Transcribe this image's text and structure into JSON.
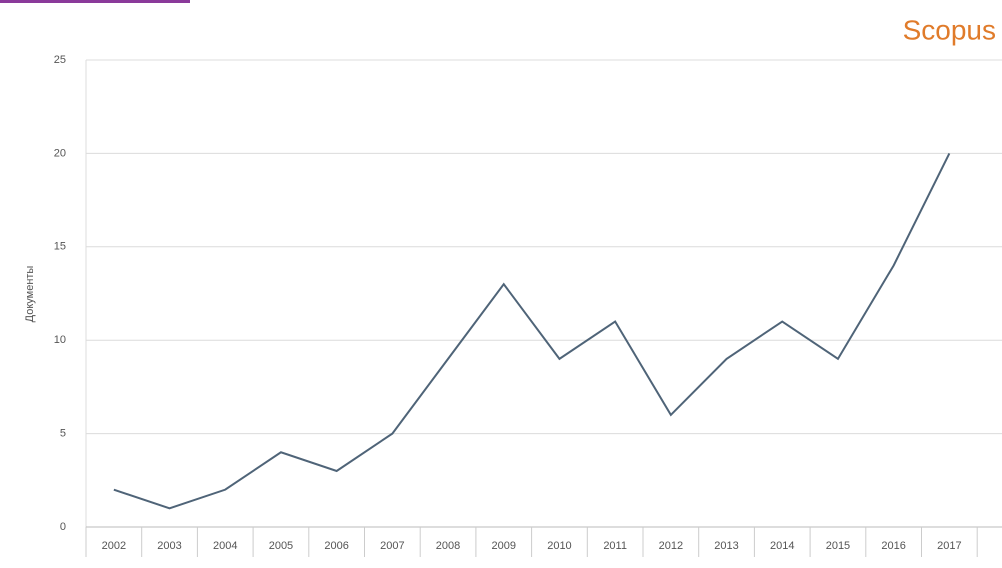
{
  "logo": "Scopus",
  "chart_data": {
    "type": "line",
    "y_label": "Документы",
    "categories": [
      "2002",
      "2003",
      "2004",
      "2005",
      "2006",
      "2007",
      "2008",
      "2009",
      "2010",
      "2011",
      "2012",
      "2013",
      "2014",
      "2015",
      "2016",
      "2017"
    ],
    "series": [
      {
        "name": "Документы",
        "color": "#4f6478",
        "values": [
          2,
          1,
          2,
          4,
          3,
          5,
          9,
          13,
          9,
          11,
          6,
          9,
          11,
          9,
          14,
          20
        ]
      }
    ],
    "ylim": [
      0,
      25
    ],
    "yticks": [
      0,
      5,
      10,
      15,
      20,
      25
    ],
    "grid": true
  }
}
